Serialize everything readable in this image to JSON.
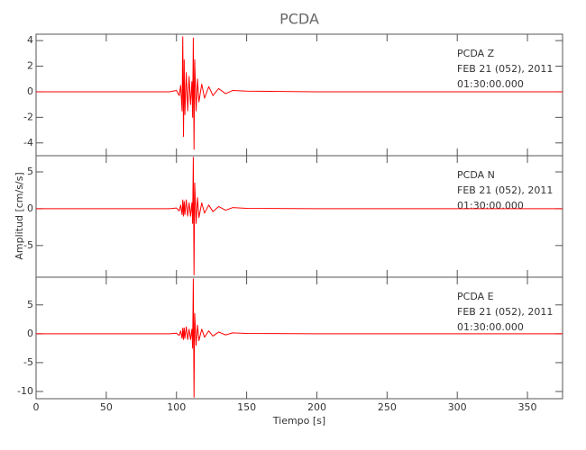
{
  "chart_data": [
    {
      "type": "line",
      "title": "PCDA",
      "annotations": [
        "PCDA   Z",
        "FEB 21 (052), 2011",
        "01:30:00.000"
      ],
      "x": [
        0,
        50,
        95,
        100,
        102,
        103,
        104,
        104.5,
        105,
        105.5,
        106,
        107,
        108,
        109,
        110,
        111,
        111.5,
        112,
        112.5,
        113,
        114,
        115,
        116,
        118,
        120,
        123,
        126,
        130,
        135,
        140,
        150,
        200,
        300,
        375
      ],
      "series": [
        {
          "color": "#ff0000",
          "values": [
            0,
            0,
            0,
            0.1,
            -0.3,
            0.5,
            -1.5,
            4.3,
            -3.5,
            2.5,
            -1.8,
            1.5,
            -1.5,
            1.2,
            -1,
            0.8,
            -2,
            4.2,
            -4.5,
            2.5,
            -1.5,
            1.0,
            -0.8,
            0.6,
            -0.5,
            0.4,
            -0.3,
            0.25,
            -0.15,
            0.1,
            0.05,
            0,
            0,
            0
          ]
        }
      ],
      "xlim": [
        0,
        375
      ],
      "ylim": [
        -5,
        4.5
      ],
      "yticks": [
        -4,
        -2,
        0,
        2,
        4
      ]
    },
    {
      "type": "line",
      "ylabel": "Amplitud [cm/s/s]",
      "annotations": [
        "PCDA   N",
        "FEB 21 (052), 2011",
        "01:30:00.000"
      ],
      "x": [
        0,
        50,
        95,
        100,
        102,
        103,
        104,
        104.5,
        105,
        105.5,
        106,
        107,
        108,
        109,
        110,
        111,
        111.5,
        112,
        112.5,
        113,
        114,
        115,
        116,
        118,
        120,
        123,
        126,
        130,
        135,
        140,
        150,
        200,
        300,
        375
      ],
      "series": [
        {
          "color": "#ff0000",
          "values": [
            0,
            0,
            0,
            0.1,
            -0.3,
            0.5,
            -0.8,
            1.2,
            -1,
            1,
            -0.8,
            1.2,
            -1,
            0.8,
            -1,
            0.8,
            -2,
            7,
            -9,
            3.5,
            -2,
            1.5,
            -1.2,
            0.8,
            -0.6,
            0.5,
            -0.4,
            0.3,
            -0.2,
            0.15,
            0.05,
            0,
            0,
            0
          ]
        }
      ],
      "xlim": [
        0,
        375
      ],
      "ylim": [
        -9.3,
        7.2
      ],
      "yticks": [
        -5,
        0,
        5
      ]
    },
    {
      "type": "line",
      "xlabel": "Tiempo [s]",
      "annotations": [
        "PCDA   E",
        "FEB 21 (052), 2011",
        "01:30:00.000"
      ],
      "x": [
        0,
        50,
        95,
        100,
        102,
        103,
        104,
        104.5,
        105,
        105.5,
        106,
        107,
        108,
        109,
        110,
        111,
        111.5,
        112,
        112.5,
        113,
        114,
        115,
        116,
        118,
        120,
        123,
        126,
        130,
        135,
        140,
        150,
        200,
        300,
        375
      ],
      "series": [
        {
          "color": "#ff0000",
          "values": [
            0,
            0,
            0,
            0.1,
            -0.3,
            0.5,
            -0.8,
            1,
            -1,
            1,
            -0.8,
            1.2,
            -1,
            0.8,
            -1,
            0.8,
            -2.5,
            9.5,
            -11,
            3.5,
            -2,
            1.5,
            -1.2,
            0.8,
            -0.6,
            0.5,
            -0.4,
            0.3,
            -0.2,
            0.15,
            0.05,
            0,
            0,
            0
          ]
        }
      ],
      "xlim": [
        0,
        375
      ],
      "ylim": [
        -11.25,
        9.8
      ],
      "yticks": [
        -10,
        -5,
        0,
        5
      ],
      "xticks": [
        0,
        50,
        100,
        150,
        200,
        250,
        300,
        350
      ]
    }
  ]
}
